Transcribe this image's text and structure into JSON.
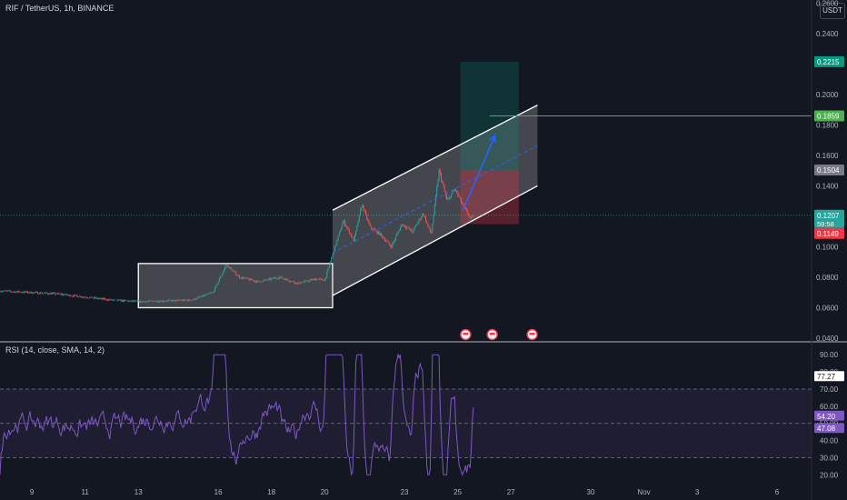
{
  "header": {
    "symbol_label": "RIF / TetherUS, 1h, BINANCE",
    "currency_button": "USDT"
  },
  "rsi": {
    "label": "RSI (14, close, SMA, 14, 2)",
    "axis": {
      "ticks": [
        "90.00",
        "80.00",
        "70.00",
        "60.00",
        "50.00",
        "40.00",
        "30.00",
        "20.00"
      ],
      "levels": [
        90,
        80,
        70,
        60,
        50,
        40,
        30,
        20
      ],
      "range": [
        17,
        97
      ]
    },
    "upper_band": 70,
    "middle_band": 50,
    "lower_band": 30,
    "badges": {
      "rsi": "77.27",
      "sma": "54.20",
      "alt": "47.08"
    },
    "colors": {
      "line": "#7e57c2",
      "badge": "#7e57c2"
    }
  },
  "chart_data": {
    "type": "candlestick",
    "title": "RIF / TetherUS, 1h, BINANCE",
    "price_axis": {
      "ticks": [
        "0.2600",
        "0.2400",
        "0.2000",
        "0.1800",
        "0.1600",
        "0.1400",
        "0.1000",
        "0.0800",
        "0.0600",
        "0.0400"
      ],
      "levels": [
        0.26,
        0.24,
        0.2,
        0.18,
        0.16,
        0.14,
        0.1,
        0.08,
        0.06,
        0.04
      ],
      "range": [
        0.04,
        0.262
      ]
    },
    "time_axis": {
      "labels": [
        "9",
        "11",
        "13",
        "16",
        "18",
        "20",
        "23",
        "25",
        "27",
        "30",
        "Nov",
        "3",
        "6"
      ],
      "day_index": [
        0,
        2,
        4,
        7,
        9,
        11,
        14,
        16,
        18,
        21,
        23,
        25,
        28
      ],
      "x_start_day": -1.2,
      "x_end_day": 29.3
    },
    "price_path": [
      [
        -1.2,
        0.071
      ],
      [
        0.0,
        0.07
      ],
      [
        1.0,
        0.069
      ],
      [
        2.0,
        0.067
      ],
      [
        3.0,
        0.065
      ],
      [
        4.0,
        0.064
      ],
      [
        5.0,
        0.0645
      ],
      [
        6.0,
        0.065
      ],
      [
        6.8,
        0.07
      ],
      [
        7.3,
        0.088
      ],
      [
        7.8,
        0.08
      ],
      [
        8.5,
        0.077
      ],
      [
        9.3,
        0.08
      ],
      [
        10.0,
        0.076
      ],
      [
        10.7,
        0.079
      ],
      [
        11.0,
        0.078
      ],
      [
        11.3,
        0.095
      ],
      [
        11.7,
        0.117
      ],
      [
        12.1,
        0.104
      ],
      [
        12.4,
        0.128
      ],
      [
        12.7,
        0.113
      ],
      [
        13.1,
        0.108
      ],
      [
        13.5,
        0.1
      ],
      [
        13.9,
        0.115
      ],
      [
        14.3,
        0.11
      ],
      [
        14.7,
        0.122
      ],
      [
        15.0,
        0.108
      ],
      [
        15.3,
        0.15
      ],
      [
        15.6,
        0.13
      ],
      [
        15.9,
        0.138
      ],
      [
        16.2,
        0.127
      ],
      [
        16.5,
        0.118
      ],
      [
        16.6,
        0.121
      ]
    ],
    "annotations": {
      "consolidation_box": {
        "day_start": 4.0,
        "day_end": 11.3,
        "price_high": 0.089,
        "price_low": 0.06
      },
      "channel": {
        "day_start": 11.3,
        "day_end": 19.0,
        "upper_start": 0.124,
        "upper_end": 0.193,
        "lower_start": 0.068,
        "lower_end": 0.14
      },
      "long_position": {
        "day_start": 16.1,
        "day_end": 18.3,
        "entry": 0.1504,
        "target": 0.2215,
        "stop": 0.1149
      },
      "arrow": {
        "from_day": 16.2,
        "from_price": 0.124,
        "to_day": 17.4,
        "to_price": 0.173
      },
      "target_line": {
        "day_start": 17.2,
        "price": 0.1859
      }
    },
    "price_labels": {
      "target": "0.2215",
      "line": "0.1859",
      "entry": "0.1504",
      "last": "0.1207",
      "countdown": "59:58",
      "stop": "0.1149"
    },
    "colors": {
      "up": "#26a69a",
      "down": "#ef5350",
      "target_line": "#4caf50",
      "arrow": "#2962ff",
      "channel": "#ffffff",
      "entry_label": "#787b86",
      "last": "#26a69a",
      "stop": "#f23645"
    }
  }
}
